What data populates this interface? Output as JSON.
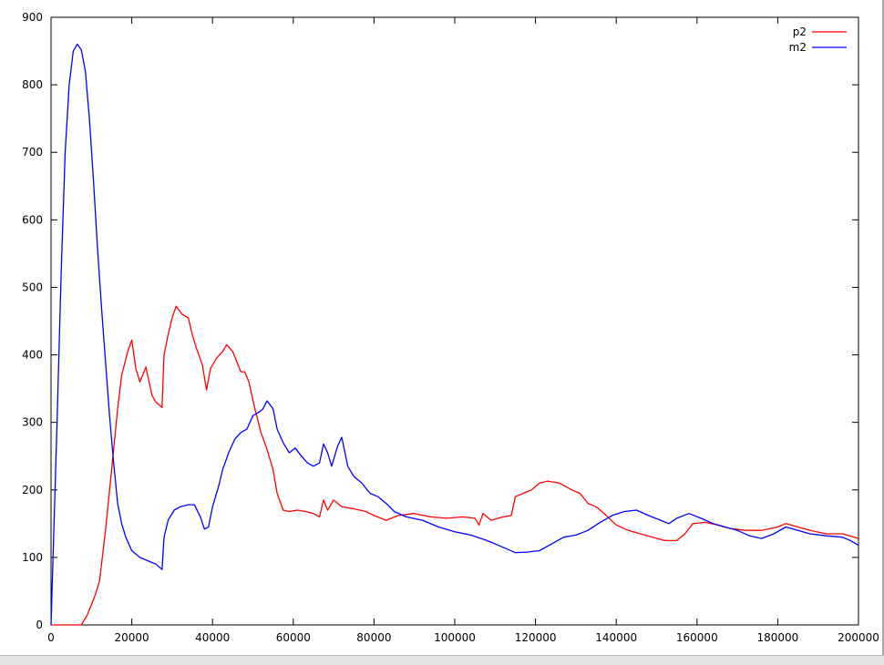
{
  "chart_data": {
    "type": "line",
    "title": "",
    "xlabel": "",
    "ylabel": "",
    "xlim": [
      0,
      200000
    ],
    "ylim": [
      0,
      900
    ],
    "xticks": [
      0,
      20000,
      40000,
      60000,
      80000,
      100000,
      120000,
      140000,
      160000,
      180000,
      200000
    ],
    "yticks": [
      0,
      100,
      200,
      300,
      400,
      500,
      600,
      700,
      800,
      900
    ],
    "grid": false,
    "legend_position": "top-right",
    "series": [
      {
        "name": "p2",
        "color": "#ff0000",
        "points": [
          [
            0,
            0
          ],
          [
            7500,
            0
          ],
          [
            9000,
            15
          ],
          [
            11000,
            45
          ],
          [
            12000,
            65
          ],
          [
            13500,
            140
          ],
          [
            15000,
            230
          ],
          [
            16500,
            320
          ],
          [
            17500,
            370
          ],
          [
            19000,
            405
          ],
          [
            20000,
            422
          ],
          [
            21000,
            380
          ],
          [
            22000,
            360
          ],
          [
            23500,
            382
          ],
          [
            25000,
            340
          ],
          [
            26000,
            330
          ],
          [
            27500,
            322
          ],
          [
            28000,
            400
          ],
          [
            29000,
            430
          ],
          [
            30000,
            455
          ],
          [
            31000,
            472
          ],
          [
            32500,
            460
          ],
          [
            34000,
            455
          ],
          [
            35000,
            430
          ],
          [
            36000,
            410
          ],
          [
            37500,
            385
          ],
          [
            38500,
            348
          ],
          [
            39500,
            380
          ],
          [
            41000,
            395
          ],
          [
            42500,
            405
          ],
          [
            43500,
            415
          ],
          [
            45000,
            405
          ],
          [
            46000,
            390
          ],
          [
            47000,
            375
          ],
          [
            48000,
            375
          ],
          [
            49000,
            360
          ],
          [
            50500,
            320
          ],
          [
            52000,
            285
          ],
          [
            53500,
            260
          ],
          [
            55000,
            230
          ],
          [
            56000,
            195
          ],
          [
            57500,
            170
          ],
          [
            59000,
            168
          ],
          [
            61000,
            170
          ],
          [
            63000,
            168
          ],
          [
            65000,
            165
          ],
          [
            66500,
            160
          ],
          [
            67500,
            185
          ],
          [
            68500,
            170
          ],
          [
            70000,
            185
          ],
          [
            72000,
            175
          ],
          [
            75000,
            172
          ],
          [
            78000,
            168
          ],
          [
            80000,
            162
          ],
          [
            83000,
            155
          ],
          [
            86000,
            162
          ],
          [
            90000,
            165
          ],
          [
            94000,
            160
          ],
          [
            98000,
            158
          ],
          [
            102000,
            160
          ],
          [
            105000,
            158
          ],
          [
            106000,
            148
          ],
          [
            107000,
            165
          ],
          [
            109000,
            155
          ],
          [
            112000,
            160
          ],
          [
            114000,
            162
          ],
          [
            115000,
            190
          ],
          [
            117000,
            195
          ],
          [
            119000,
            200
          ],
          [
            121000,
            210
          ],
          [
            123000,
            213
          ],
          [
            126000,
            210
          ],
          [
            129000,
            200
          ],
          [
            131000,
            195
          ],
          [
            133000,
            180
          ],
          [
            135000,
            175
          ],
          [
            137000,
            165
          ],
          [
            140000,
            148
          ],
          [
            143000,
            140
          ],
          [
            146000,
            135
          ],
          [
            149000,
            130
          ],
          [
            152000,
            125
          ],
          [
            155000,
            125
          ],
          [
            157000,
            135
          ],
          [
            159000,
            150
          ],
          [
            162000,
            152
          ],
          [
            165000,
            148
          ],
          [
            168000,
            143
          ],
          [
            172000,
            140
          ],
          [
            176000,
            140
          ],
          [
            180000,
            145
          ],
          [
            182000,
            150
          ],
          [
            185000,
            145
          ],
          [
            188000,
            140
          ],
          [
            192000,
            135
          ],
          [
            196000,
            135
          ],
          [
            199000,
            130
          ],
          [
            200000,
            128
          ]
        ]
      },
      {
        "name": "m2",
        "color": "#0000ff",
        "points": [
          [
            0,
            0
          ],
          [
            500,
            100
          ],
          [
            1500,
            300
          ],
          [
            2500,
            520
          ],
          [
            3500,
            700
          ],
          [
            4500,
            800
          ],
          [
            5500,
            850
          ],
          [
            6500,
            860
          ],
          [
            7500,
            852
          ],
          [
            8500,
            820
          ],
          [
            9500,
            750
          ],
          [
            10500,
            660
          ],
          [
            11500,
            560
          ],
          [
            12500,
            470
          ],
          [
            13500,
            390
          ],
          [
            14500,
            310
          ],
          [
            15500,
            240
          ],
          [
            16500,
            180
          ],
          [
            17500,
            150
          ],
          [
            18500,
            130
          ],
          [
            20000,
            110
          ],
          [
            22000,
            100
          ],
          [
            24000,
            95
          ],
          [
            26000,
            90
          ],
          [
            27500,
            82
          ],
          [
            28000,
            130
          ],
          [
            29000,
            155
          ],
          [
            30500,
            170
          ],
          [
            32000,
            175
          ],
          [
            34000,
            178
          ],
          [
            35500,
            178
          ],
          [
            37000,
            160
          ],
          [
            38000,
            142
          ],
          [
            39000,
            145
          ],
          [
            40000,
            175
          ],
          [
            41500,
            205
          ],
          [
            42500,
            230
          ],
          [
            44000,
            255
          ],
          [
            45500,
            275
          ],
          [
            47000,
            285
          ],
          [
            48500,
            290
          ],
          [
            50000,
            310
          ],
          [
            51500,
            315
          ],
          [
            52500,
            320
          ],
          [
            53500,
            332
          ],
          [
            55000,
            320
          ],
          [
            56000,
            290
          ],
          [
            57500,
            270
          ],
          [
            59000,
            255
          ],
          [
            60500,
            262
          ],
          [
            62000,
            250
          ],
          [
            63500,
            240
          ],
          [
            65000,
            235
          ],
          [
            66500,
            240
          ],
          [
            67500,
            268
          ],
          [
            68500,
            255
          ],
          [
            69500,
            235
          ],
          [
            71000,
            265
          ],
          [
            72000,
            278
          ],
          [
            73500,
            235
          ],
          [
            75000,
            220
          ],
          [
            77000,
            210
          ],
          [
            79000,
            195
          ],
          [
            81000,
            190
          ],
          [
            83000,
            180
          ],
          [
            85000,
            168
          ],
          [
            88000,
            160
          ],
          [
            92000,
            155
          ],
          [
            96000,
            145
          ],
          [
            100000,
            138
          ],
          [
            104000,
            133
          ],
          [
            108000,
            125
          ],
          [
            112000,
            115
          ],
          [
            115000,
            107
          ],
          [
            118000,
            108
          ],
          [
            121000,
            110
          ],
          [
            124000,
            120
          ],
          [
            127000,
            130
          ],
          [
            130000,
            133
          ],
          [
            133000,
            140
          ],
          [
            136000,
            152
          ],
          [
            139000,
            162
          ],
          [
            142000,
            168
          ],
          [
            145000,
            170
          ],
          [
            148000,
            162
          ],
          [
            151000,
            155
          ],
          [
            153000,
            150
          ],
          [
            155000,
            158
          ],
          [
            158000,
            165
          ],
          [
            161000,
            158
          ],
          [
            164000,
            150
          ],
          [
            167000,
            145
          ],
          [
            170000,
            140
          ],
          [
            173000,
            132
          ],
          [
            176000,
            128
          ],
          [
            179000,
            135
          ],
          [
            182000,
            145
          ],
          [
            185000,
            140
          ],
          [
            188000,
            135
          ],
          [
            192000,
            132
          ],
          [
            196000,
            130
          ],
          [
            198000,
            125
          ],
          [
            200000,
            118
          ]
        ]
      }
    ]
  }
}
